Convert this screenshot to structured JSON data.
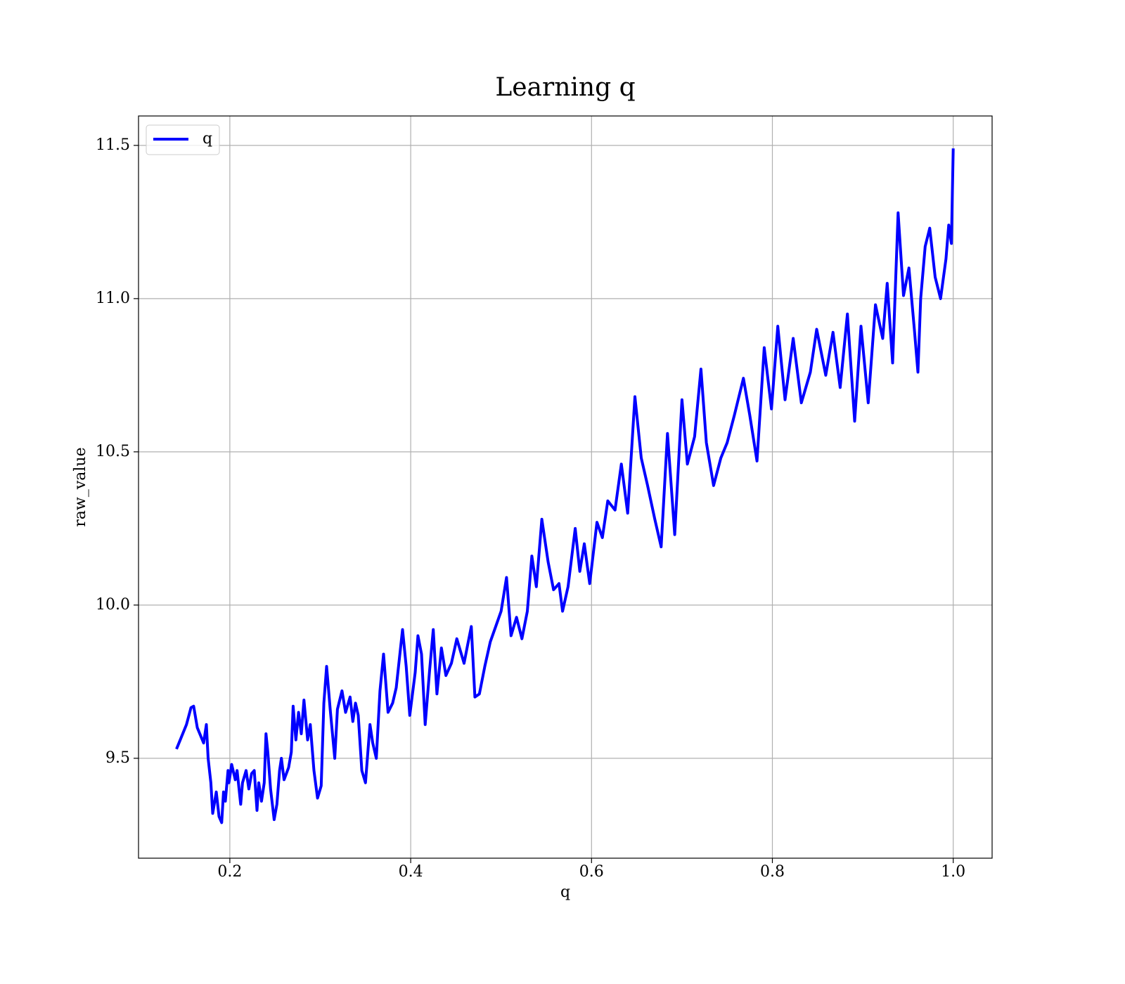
{
  "chart_data": {
    "type": "line",
    "title": "Learning q",
    "xlabel": "q",
    "ylabel": "raw_value",
    "x": [
      0.141,
      0.152,
      0.157,
      0.16,
      0.164,
      0.171,
      0.174,
      0.176,
      0.179,
      0.181,
      0.185,
      0.188,
      0.191,
      0.193,
      0.195,
      0.198,
      0.199,
      0.202,
      0.206,
      0.208,
      0.212,
      0.214,
      0.218,
      0.221,
      0.224,
      0.227,
      0.23,
      0.232,
      0.235,
      0.238,
      0.24,
      0.242,
      0.245,
      0.249,
      0.252,
      0.255,
      0.257,
      0.26,
      0.265,
      0.268,
      0.27,
      0.273,
      0.276,
      0.279,
      0.282,
      0.286,
      0.289,
      0.293,
      0.297,
      0.301,
      0.304,
      0.307,
      0.311,
      0.316,
      0.319,
      0.324,
      0.328,
      0.333,
      0.336,
      0.339,
      0.342,
      0.346,
      0.35,
      0.355,
      0.358,
      0.362,
      0.366,
      0.37,
      0.375,
      0.38,
      0.384,
      0.391,
      0.395,
      0.399,
      0.405,
      0.408,
      0.412,
      0.416,
      0.421,
      0.425,
      0.429,
      0.434,
      0.439,
      0.445,
      0.451,
      0.459,
      0.463,
      0.467,
      0.471,
      0.476,
      0.482,
      0.488,
      0.494,
      0.5,
      0.506,
      0.511,
      0.517,
      0.523,
      0.529,
      0.534,
      0.539,
      0.545,
      0.552,
      0.558,
      0.564,
      0.568,
      0.574,
      0.582,
      0.587,
      0.592,
      0.598,
      0.606,
      0.612,
      0.618,
      0.626,
      0.633,
      0.64,
      0.648,
      0.655,
      0.662,
      0.67,
      0.677,
      0.684,
      0.692,
      0.7,
      0.706,
      0.714,
      0.721,
      0.727,
      0.735,
      0.743,
      0.75,
      0.758,
      0.768,
      0.775,
      0.783,
      0.791,
      0.799,
      0.806,
      0.814,
      0.823,
      0.832,
      0.842,
      0.849,
      0.859,
      0.867,
      0.875,
      0.883,
      0.891,
      0.898,
      0.906,
      0.914,
      0.922,
      0.927,
      0.933,
      0.939,
      0.945,
      0.951,
      0.957,
      0.961,
      0.964,
      0.969,
      0.974,
      0.98,
      0.986,
      0.992,
      0.995,
      0.998,
      1.0
    ],
    "series": [
      {
        "name": "q",
        "color": "#0000ff",
        "values": [
          9.53,
          9.61,
          9.665,
          9.67,
          9.6,
          9.55,
          9.61,
          9.5,
          9.42,
          9.32,
          9.39,
          9.31,
          9.29,
          9.39,
          9.36,
          9.46,
          9.42,
          9.48,
          9.43,
          9.46,
          9.35,
          9.42,
          9.46,
          9.4,
          9.45,
          9.46,
          9.33,
          9.42,
          9.36,
          9.42,
          9.58,
          9.52,
          9.4,
          9.3,
          9.35,
          9.46,
          9.5,
          9.43,
          9.47,
          9.52,
          9.67,
          9.56,
          9.65,
          9.58,
          9.69,
          9.56,
          9.61,
          9.46,
          9.37,
          9.41,
          9.68,
          9.8,
          9.66,
          9.5,
          9.66,
          9.72,
          9.65,
          9.7,
          9.62,
          9.68,
          9.64,
          9.46,
          9.42,
          9.61,
          9.55,
          9.5,
          9.72,
          9.84,
          9.65,
          9.68,
          9.73,
          9.92,
          9.8,
          9.64,
          9.78,
          9.9,
          9.84,
          9.61,
          9.79,
          9.92,
          9.71,
          9.86,
          9.77,
          9.81,
          9.89,
          9.81,
          9.87,
          9.93,
          9.7,
          9.71,
          9.8,
          9.88,
          9.93,
          9.98,
          10.09,
          9.9,
          9.96,
          9.89,
          9.98,
          10.16,
          10.06,
          10.28,
          10.14,
          10.05,
          10.07,
          9.98,
          10.06,
          10.25,
          10.11,
          10.2,
          10.07,
          10.27,
          10.22,
          10.34,
          10.31,
          10.46,
          10.3,
          10.68,
          10.48,
          10.39,
          10.28,
          10.19,
          10.56,
          10.23,
          10.67,
          10.46,
          10.55,
          10.77,
          10.53,
          10.39,
          10.48,
          10.53,
          10.62,
          10.74,
          10.62,
          10.47,
          10.84,
          10.64,
          10.91,
          10.67,
          10.87,
          10.66,
          10.76,
          10.9,
          10.75,
          10.89,
          10.71,
          10.95,
          10.6,
          10.91,
          10.66,
          10.98,
          10.87,
          11.05,
          10.79,
          11.28,
          11.01,
          11.1,
          10.9,
          10.76,
          11.0,
          11.17,
          11.23,
          11.07,
          11.0,
          11.13,
          11.24,
          11.18,
          11.49
        ]
      }
    ],
    "xlim": [
      0.099,
      1.043
    ],
    "ylim": [
      9.174,
      11.596
    ],
    "xticks": [
      0.2,
      0.4,
      0.6,
      0.8,
      {
        "value": 1,
        "label": "1.0"
      }
    ],
    "yticks": [
      9.5,
      {
        "value": 10,
        "label": "10.0"
      },
      10.5,
      {
        "value": 11,
        "label": "11.0"
      },
      11.5
    ],
    "grid": true,
    "legend": "upper left"
  }
}
